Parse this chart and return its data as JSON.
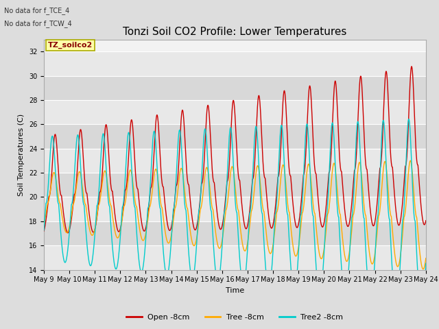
{
  "title": "Tonzi Soil CO2 Profile: Lower Temperatures",
  "xlabel": "Time",
  "ylabel": "Soil Temperatures (C)",
  "ylim": [
    14,
    33
  ],
  "yticks": [
    14,
    16,
    18,
    20,
    22,
    24,
    26,
    28,
    30,
    32
  ],
  "annotation_lines": [
    "No data for f_TCE_4",
    "No data for f_TCW_4"
  ],
  "legend_label": "TZ_soilco2",
  "series": [
    {
      "label": "Open -8cm",
      "color": "#cc0000"
    },
    {
      "label": "Tree -8cm",
      "color": "#ffaa00"
    },
    {
      "label": "Tree2 -8cm",
      "color": "#00cccc"
    }
  ],
  "x_tick_labels": [
    "May 9",
    "May 10",
    "May 11",
    "May 12",
    "May 13",
    "May 14",
    "May 15",
    "May 16",
    "May 17",
    "May 18",
    "May 19",
    "May 20",
    "May 21",
    "May 22",
    "May 23",
    "May 24"
  ],
  "background_color": "#dddddd",
  "plot_bg_color": "#f2f2f2",
  "grid_color": "#ffffff",
  "title_fontsize": 11,
  "axis_fontsize": 8,
  "tick_fontsize": 7,
  "band_colors": [
    "#e8e8e8",
    "#d8d8d8"
  ]
}
